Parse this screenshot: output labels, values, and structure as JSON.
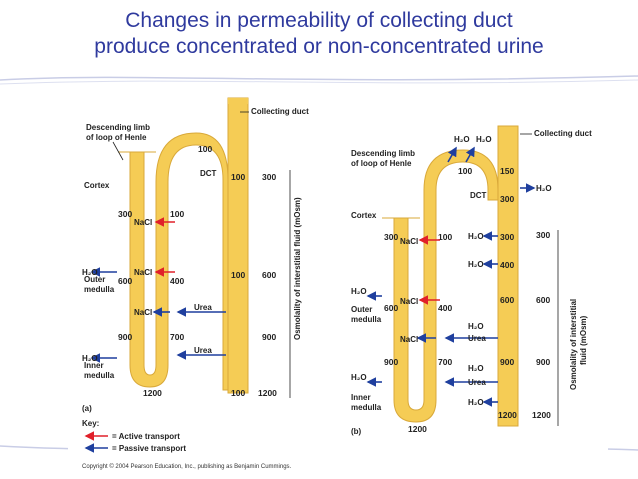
{
  "title": {
    "line1": "Changes in permeability of collecting duct",
    "line2": "produce concentrated or non-concentrated urine"
  },
  "colors": {
    "title": "#2f3a9e",
    "tubule": "#f5cc55",
    "active_arrow": "#e0202a",
    "passive_arrow": "#1f3f9e"
  },
  "panel_a": {
    "collecting_duct": "Collecting duct",
    "descending_limb_line1": "Descending limb",
    "descending_limb_line2": "of loop of Henle",
    "cortex": "Cortex",
    "outer_medulla_line1": "Outer",
    "outer_medulla_line2": "medulla",
    "inner_medulla_line1": "Inner",
    "inner_medulla_line2": "medulla",
    "dct": "DCT",
    "h2o": "H₂O",
    "nacl": "NaCl",
    "urea": "Urea",
    "axis_label": "Osmolality of interstitial fluid (mOsm)",
    "letter": "(a)",
    "values": {
      "desc_300": "300",
      "desc_600": "600",
      "desc_900": "900",
      "bottom_1200": "1200",
      "asc_100a": "100",
      "asc_400": "400",
      "asc_700": "700",
      "top_100": "100",
      "cd_100a": "100",
      "cd_100b": "100",
      "cd_100c": "100",
      "scale_300": "300",
      "scale_600": "600",
      "scale_900": "900",
      "scale_1200": "1200"
    }
  },
  "panel_b": {
    "collecting_duct": "Collecting duct",
    "descending_limb_line1": "Descending limb",
    "descending_limb_line2": "of loop of Henle",
    "cortex": "Cortex",
    "outer_medulla_line1": "Outer",
    "outer_medulla_line2": "medulla",
    "inner_medulla_line1": "Inner",
    "inner_medulla_line2": "medulla",
    "dct": "DCT",
    "h2o": "H₂O",
    "nacl": "NaCl",
    "urea": "Urea",
    "axis_label_line1": "Osmolality of interstitial",
    "axis_label_line2": "fluid (mOsm)",
    "letter": "(b)",
    "values": {
      "desc_300": "300",
      "desc_600": "600",
      "desc_900": "900",
      "bottom_1200": "1200",
      "asc_100": "100",
      "asc_400": "400",
      "asc_700": "700",
      "top_100": "100",
      "cd_150": "150",
      "cd_300a": "300",
      "cd_300b": "300",
      "cd_400": "400",
      "cd_600": "600",
      "cd_900": "900",
      "cd_1200": "1200",
      "scale_300": "300",
      "scale_600": "600",
      "scale_900": "900",
      "scale_1200": "1200"
    }
  },
  "key": {
    "title": "Key:",
    "active": "= Active transport",
    "passive": "= Passive transport"
  },
  "copyright": "Copyright © 2004 Pearson Education, Inc., publishing as Benjamin Cummings."
}
